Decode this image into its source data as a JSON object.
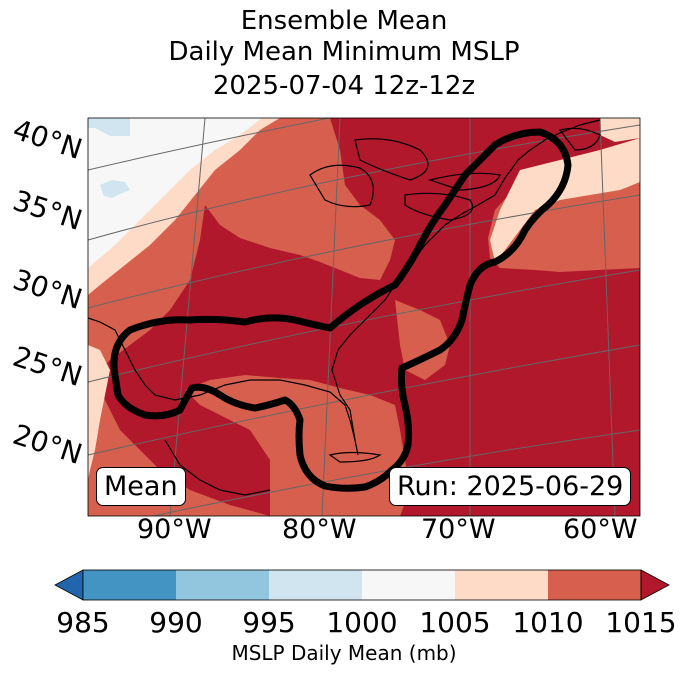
{
  "title": {
    "line1": "Ensemble Mean",
    "line2": "Daily Mean Minimum MSLP",
    "line3": "2025-07-04 12z-12z"
  },
  "map": {
    "lat_labels": [
      "40°N",
      "35°N",
      "30°N",
      "25°N",
      "20°N"
    ],
    "lon_labels": [
      "90°W",
      "80°W",
      "70°W",
      "60°W"
    ],
    "mean_label": "Mean",
    "run_label": "Run: 2025-06-29"
  },
  "colorbar": {
    "ticks": [
      "985",
      "990",
      "995",
      "1000",
      "1005",
      "1010",
      "1015"
    ],
    "label": "MSLP Daily Mean (mb)",
    "colors": [
      "#2166ac",
      "#4393c3",
      "#92c5de",
      "#d1e5f0",
      "#f7f7f7",
      "#fddbc7",
      "#d6604d",
      "#b2182b"
    ]
  }
}
